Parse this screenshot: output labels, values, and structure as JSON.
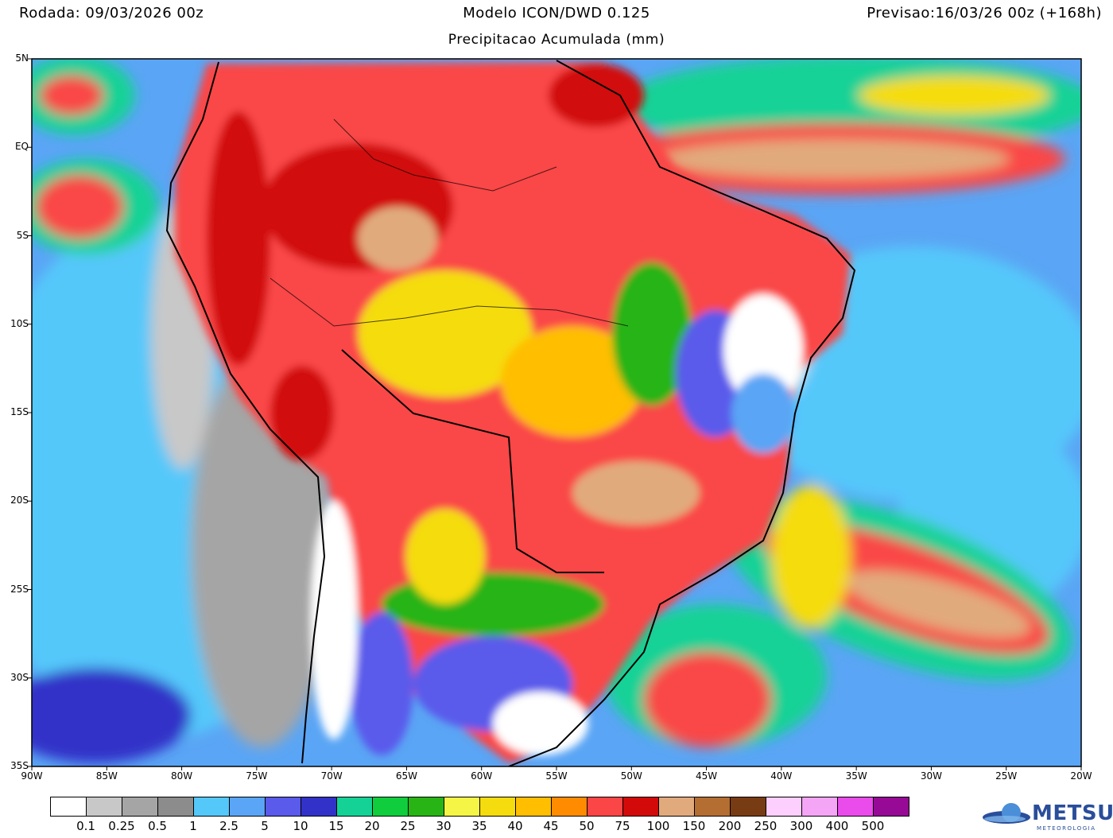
{
  "header": {
    "rodada": "Rodada: 09/03/2026 00z",
    "modelo": "Modelo ICON/DWD 0.125",
    "previsao": "Previsao:16/03/26 00z (+168h)",
    "subtitle": "Precipitacao Acumulada (mm)"
  },
  "map": {
    "lat_ticks": [
      "5N",
      "EQ",
      "5S",
      "10S",
      "15S",
      "20S",
      "25S",
      "30S",
      "35S"
    ],
    "lon_ticks": [
      "90W",
      "85W",
      "80W",
      "75W",
      "70W",
      "65W",
      "60W",
      "55W",
      "50W",
      "45W",
      "40W",
      "35W",
      "30W",
      "25W",
      "20W"
    ],
    "extent": {
      "lon": [
        -90,
        -20
      ],
      "lat": [
        -35,
        5
      ]
    }
  },
  "legend": {
    "unit": "mm",
    "labels": [
      "0.1",
      "0.25",
      "0.5",
      "1",
      "2.5",
      "5",
      "10",
      "15",
      "20",
      "25",
      "30",
      "35",
      "40",
      "45",
      "50",
      "75",
      "100",
      "150",
      "200",
      "250",
      "300",
      "400",
      "500"
    ],
    "colors": [
      "#ffffff",
      "#c8c8c8",
      "#a5a5a5",
      "#8c8c8c",
      "#55c8fa",
      "#5aa5f5",
      "#5a5aeb",
      "#3232c8",
      "#14d296",
      "#0fcd3c",
      "#28b414",
      "#f5f546",
      "#f5dc0f",
      "#ffbe00",
      "#ff8c00",
      "#fa4646",
      "#d20a0a",
      "#e1aa7d",
      "#b46e32",
      "#783c14",
      "#fccffc",
      "#f5a5f5",
      "#ea4beb",
      "#960a96"
    ]
  },
  "logo": {
    "name": "METSUL",
    "tagline": "METEOROLOGIA",
    "icon": "globe-icon"
  }
}
